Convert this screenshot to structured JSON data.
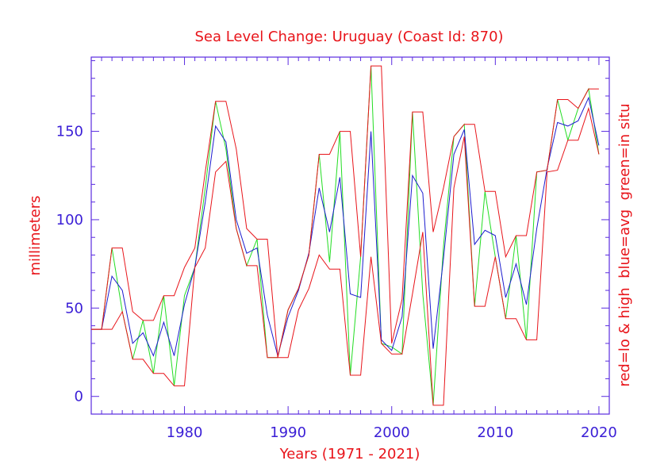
{
  "chart_data": {
    "type": "line",
    "title": "Sea Level Change: Uruguay (Coast Id: 870)",
    "xlabel": "Years (1971 - 2021)",
    "ylabel": "millimeters",
    "right_label": "red=lo & high  blue=avg  green=in situ",
    "xlim": [
      1971,
      2021
    ],
    "ylim": [
      -10,
      192
    ],
    "x_ticks": [
      1980,
      1990,
      2000,
      2010,
      2020
    ],
    "y_ticks": [
      0,
      50,
      100,
      150
    ],
    "x_tick_labels": [
      "1980",
      "1990",
      "2000",
      "2010",
      "2020"
    ],
    "y_tick_labels": [
      "0",
      "50",
      "100",
      "150"
    ],
    "colors": {
      "low_high": "#e8141a",
      "avg": "#1c1ccf",
      "in_situ": "#22dd22",
      "axis": "#5a2be0",
      "text": "#e8141a"
    },
    "years": [
      1971,
      1972,
      1973,
      1974,
      1975,
      1976,
      1977,
      1978,
      1979,
      1980,
      1981,
      1982,
      1983,
      1984,
      1985,
      1986,
      1987,
      1988,
      1989,
      1990,
      1991,
      1992,
      1993,
      1994,
      1995,
      1996,
      1997,
      1998,
      1999,
      2000,
      2001,
      2002,
      2003,
      2004,
      2005,
      2006,
      2007,
      2008,
      2009,
      2010,
      2011,
      2012,
      2013,
      2014,
      2015,
      2016,
      2017,
      2018,
      2019,
      2020
    ],
    "series": [
      {
        "name": "in situ",
        "values": [
          38,
          38,
          84,
          48,
          21,
          43,
          13,
          57,
          6,
          57,
          73,
          118,
          167,
          140,
          95,
          74,
          89,
          22,
          22,
          49,
          61,
          80,
          137,
          76,
          150,
          12,
          79,
          187,
          30,
          28,
          24,
          161,
          58,
          -5,
          85,
          147,
          154,
          51,
          116,
          79,
          44,
          91,
          32,
          127,
          128,
          168,
          145,
          163,
          174,
          137
        ]
      },
      {
        "name": "avg",
        "values": [
          38,
          38,
          68,
          60,
          30,
          36,
          23,
          42,
          23,
          52,
          73,
          110,
          153,
          144,
          100,
          81,
          84,
          46,
          23,
          45,
          60,
          81,
          118,
          93,
          124,
          58,
          56,
          150,
          32,
          26,
          45,
          125,
          115,
          27,
          78,
          137,
          151,
          86,
          94,
          91,
          56,
          75,
          52,
          95,
          129,
          155,
          153,
          156,
          169,
          142
        ]
      },
      {
        "name": "high",
        "values": [
          38,
          38,
          84,
          84,
          48,
          43,
          43,
          57,
          57,
          73,
          84,
          127,
          167,
          167,
          140,
          95,
          89,
          89,
          22,
          49,
          61,
          80,
          137,
          137,
          150,
          150,
          79,
          187,
          187,
          30,
          55,
          161,
          161,
          93,
          118,
          147,
          154,
          154,
          116,
          116,
          79,
          91,
          91,
          127,
          128,
          168,
          168,
          163,
          174,
          174
        ]
      },
      {
        "name": "low",
        "values": [
          38,
          38,
          38,
          48,
          21,
          21,
          13,
          13,
          6,
          6,
          73,
          84,
          127,
          133,
          95,
          74,
          74,
          22,
          22,
          22,
          49,
          61,
          80,
          72,
          72,
          12,
          12,
          79,
          30,
          24,
          24,
          58,
          93,
          -5,
          -5,
          118,
          147,
          51,
          51,
          79,
          44,
          44,
          32,
          32,
          127,
          128,
          145,
          145,
          163,
          137
        ]
      }
    ]
  }
}
